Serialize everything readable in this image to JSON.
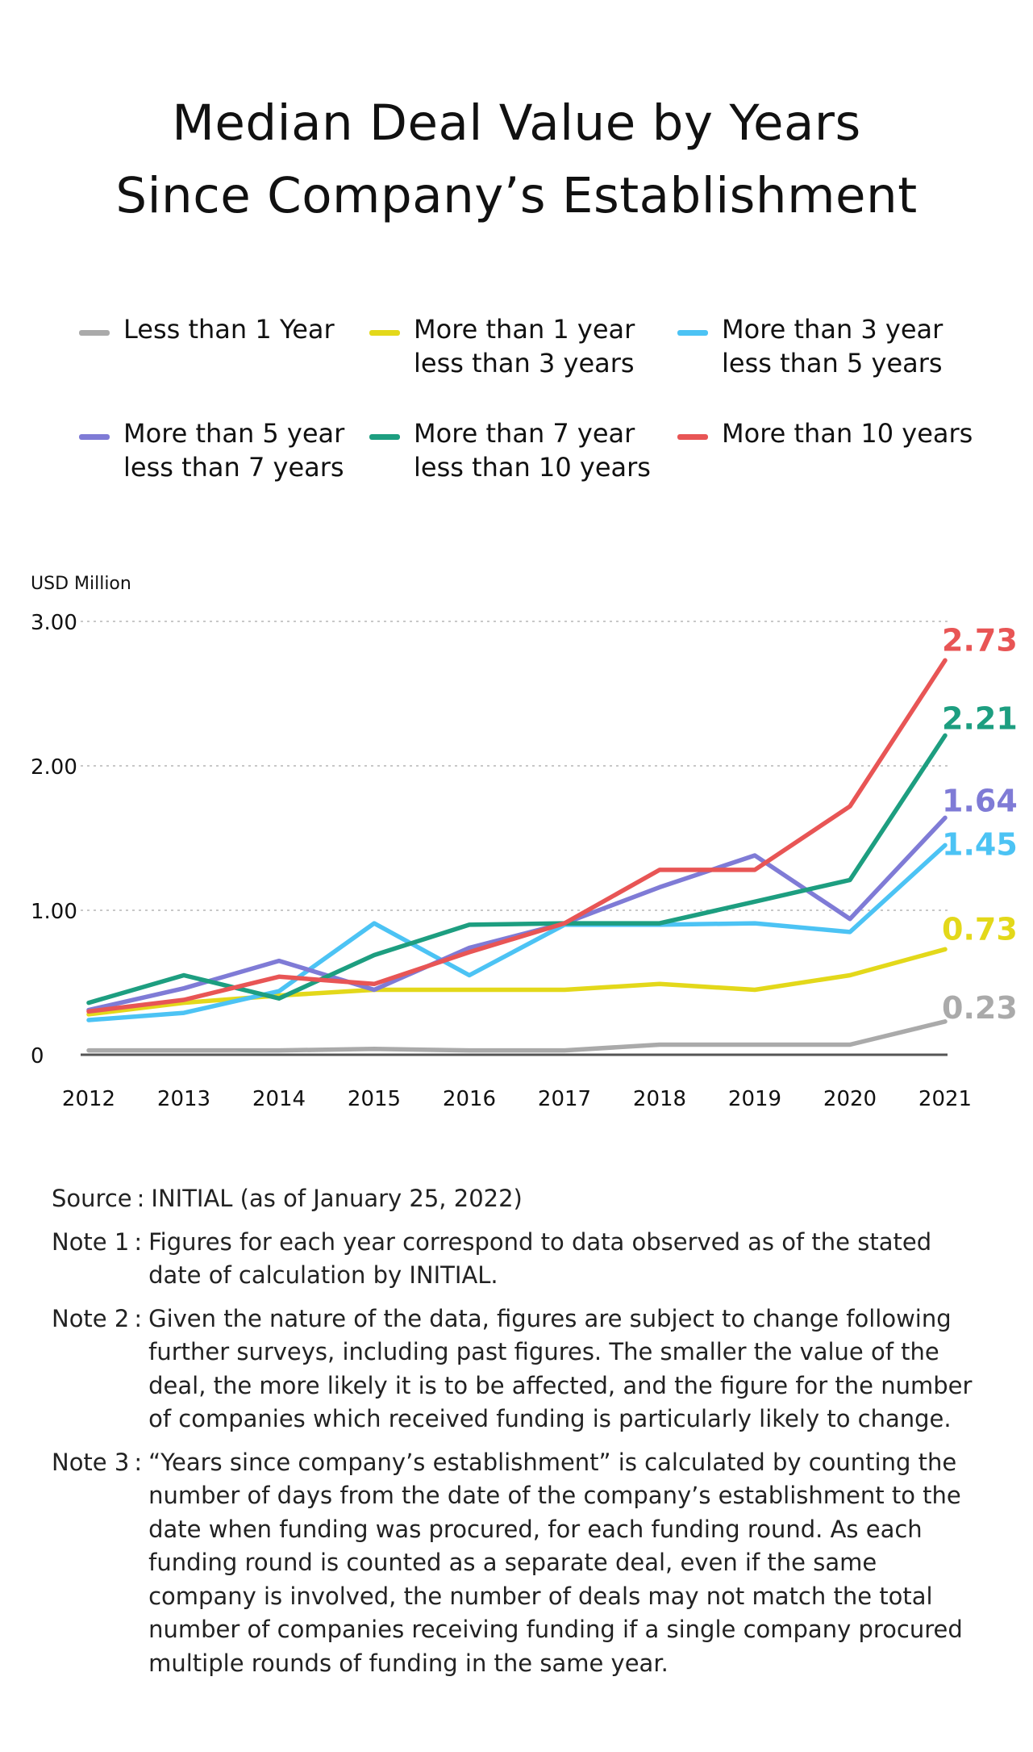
{
  "title": {
    "line1": "Median Deal Value by Years",
    "line2": "Since Company’s Establishment"
  },
  "legend": [
    {
      "line1": "Less than 1 Year",
      "line2": "",
      "color": "#aaaaaa"
    },
    {
      "line1": "More than 1 year",
      "line2": "less than 3 years",
      "color": "#e3d81a"
    },
    {
      "line1": "More than 3 year",
      "line2": "less than 5 years",
      "color": "#4cc3f4"
    },
    {
      "line1": "More than 5 year",
      "line2": "less than 7 years",
      "color": "#7f7bd6"
    },
    {
      "line1": "More than 7 year",
      "line2": "less than 10 years",
      "color": "#1d9e80"
    },
    {
      "line1": "More than 10 years",
      "line2": "",
      "color": "#e85555"
    }
  ],
  "chart_data": {
    "type": "line",
    "title": "Median Deal Value by Years Since Company’s Establishment",
    "ylabel": "USD Million",
    "xlabel": "",
    "categories": [
      "2012",
      "2013",
      "2014",
      "2015",
      "2016",
      "2017",
      "2018",
      "2019",
      "2020",
      "2021"
    ],
    "ylim": [
      0,
      3
    ],
    "yticks": [
      {
        "value": 0,
        "label": "0"
      },
      {
        "value": 1,
        "label": "1.00"
      },
      {
        "value": 2,
        "label": "2.00"
      },
      {
        "value": 3,
        "label": "3.00"
      }
    ],
    "grid": "horizontal dotted",
    "series": [
      {
        "name": "Less than 1 Year",
        "color": "#aaaaaa",
        "values": [
          0.03,
          0.03,
          0.03,
          0.04,
          0.03,
          0.03,
          0.07,
          0.07,
          0.07,
          0.23
        ],
        "end_label": "0.23"
      },
      {
        "name": "More than 1 year less than 3 years",
        "color": "#e3d81a",
        "values": [
          0.28,
          0.36,
          0.41,
          0.45,
          0.45,
          0.45,
          0.49,
          0.45,
          0.55,
          0.73
        ],
        "end_label": "0.73"
      },
      {
        "name": "More than 3 year less than 5 years",
        "color": "#4cc3f4",
        "values": [
          0.24,
          0.29,
          0.44,
          0.91,
          0.55,
          0.9,
          0.9,
          0.91,
          0.85,
          1.45
        ],
        "end_label": "1.45"
      },
      {
        "name": "More than 5 year less than 7 years",
        "color": "#7f7bd6",
        "values": [
          0.31,
          0.46,
          0.65,
          0.45,
          0.74,
          0.91,
          1.16,
          1.38,
          0.94,
          1.64
        ],
        "end_label": "1.64"
      },
      {
        "name": "More than 7 year less than 10 years",
        "color": "#1d9e80",
        "values": [
          0.36,
          0.55,
          0.39,
          0.69,
          0.9,
          0.91,
          0.91,
          1.06,
          1.21,
          2.21
        ],
        "end_label": "2.21"
      },
      {
        "name": "More than 10 years",
        "color": "#e85555",
        "values": [
          0.3,
          0.38,
          0.54,
          0.49,
          0.71,
          0.91,
          1.28,
          1.28,
          1.72,
          2.73
        ],
        "end_label": "2.73"
      }
    ]
  },
  "notes": [
    {
      "label": "Source",
      "text": "INITIAL (as of January 25, 2022)"
    },
    {
      "label": "Note 1",
      "text": "Figures for each year correspond to data observed as of the stated date of calculation by INITIAL."
    },
    {
      "label": "Note 2",
      "text": "Given the nature of the data, figures are subject to change following further surveys, including past figures. The smaller the value of the deal, the more likely it is to be affected, and the figure for the number of companies which received funding is particularly likely to change."
    },
    {
      "label": "Note 3",
      "text": "“Years since company’s establishment” is calculated by counting the number of days from the date of the company’s establishment to the date when funding was procured, for each funding round. As each funding round is counted as a separate deal, even if the same company is involved, the number of deals may not match the total number of companies receiving funding if a single company procured multiple rounds of funding in the same year."
    }
  ]
}
